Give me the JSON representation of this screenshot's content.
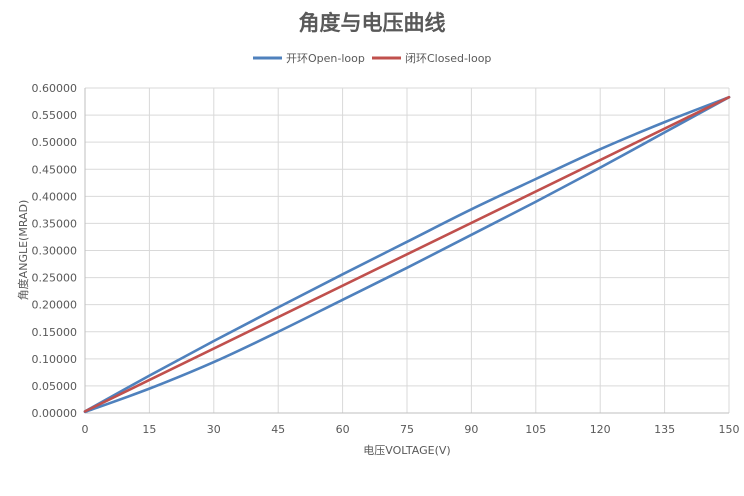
{
  "chart_data": {
    "type": "line",
    "title": "角度与电压曲线",
    "xlabel": "电压VOLTAGE(V)",
    "ylabel": "角度ANGLE(MRAD)",
    "xlim": [
      0,
      150
    ],
    "ylim": [
      0,
      0.6
    ],
    "x_ticks": [
      "0",
      "15",
      "30",
      "45",
      "60",
      "75",
      "90",
      "105",
      "120",
      "135",
      "150"
    ],
    "y_ticks": [
      "0.00000",
      "0.05000",
      "0.10000",
      "0.15000",
      "0.20000",
      "0.25000",
      "0.30000",
      "0.35000",
      "0.40000",
      "0.45000",
      "0.50000",
      "0.55000",
      "0.60000"
    ],
    "grid": "vertical and horizontal",
    "legend_position": "top",
    "series": [
      {
        "name": "开环Open-loop",
        "color": "#4f81bd",
        "style": "hysteresis loop",
        "branches": [
          {
            "x": [
              0,
              15,
              30,
              45,
              60,
              75,
              90,
              105,
              120,
              135,
              150
            ],
            "y": [
              0.003,
              0.069,
              0.133,
              0.195,
              0.256,
              0.316,
              0.376,
              0.432,
              0.487,
              0.537,
              0.583
            ]
          },
          {
            "x": [
              0,
              15,
              30,
              45,
              60,
              75,
              90,
              105,
              120,
              135,
              150
            ],
            "y": [
              0.002,
              0.045,
              0.094,
              0.15,
              0.209,
              0.268,
              0.329,
              0.39,
              0.453,
              0.518,
              0.583
            ]
          }
        ]
      },
      {
        "name": "闭环Closed-loop",
        "color": "#c0504d",
        "style": "line",
        "branches": [
          {
            "x": [
              0,
              150
            ],
            "y": [
              0.003,
              0.583
            ]
          }
        ]
      }
    ]
  }
}
